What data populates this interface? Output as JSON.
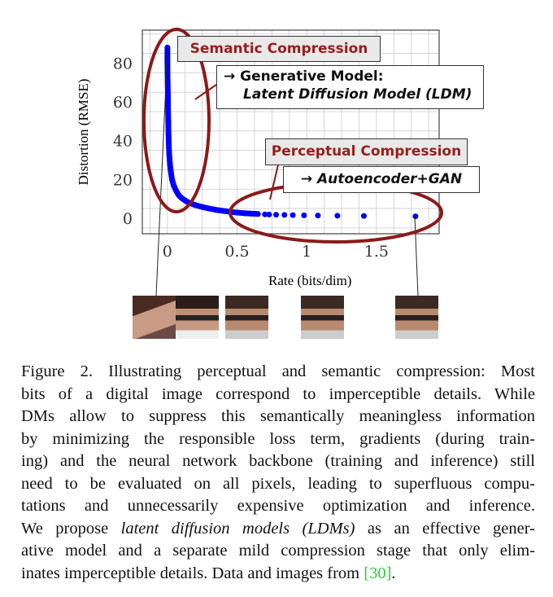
{
  "chart_data": {
    "type": "scatter",
    "xlabel": "Rate (bits/dim)",
    "ylabel": "Distortion (RMSE)",
    "xlim": [
      -0.18,
      1.95
    ],
    "ylim": [
      -8,
      97
    ],
    "xticks": [
      "0",
      "0.5",
      "1",
      "1.5"
    ],
    "xtick_values": [
      0,
      0.5,
      1,
      1.5
    ],
    "yticks": [
      "0",
      "20",
      "40",
      "60",
      "80"
    ],
    "ytick_values": [
      0,
      20,
      40,
      60,
      80
    ],
    "grid": true,
    "point_color": "#0000ff",
    "points": [
      [
        0,
        88
      ],
      [
        0,
        80
      ],
      [
        0.002,
        70
      ],
      [
        0.004,
        60
      ],
      [
        0.006,
        50
      ],
      [
        0.009,
        40
      ],
      [
        0.013,
        33
      ],
      [
        0.018,
        28
      ],
      [
        0.025,
        24
      ],
      [
        0.033,
        20
      ],
      [
        0.045,
        17
      ],
      [
        0.06,
        14.5
      ],
      [
        0.08,
        12
      ],
      [
        0.1,
        10.5
      ],
      [
        0.13,
        9
      ],
      [
        0.16,
        7.8
      ],
      [
        0.2,
        6.8
      ],
      [
        0.25,
        5.8
      ],
      [
        0.3,
        5
      ],
      [
        0.35,
        4.3
      ],
      [
        0.4,
        3.8
      ],
      [
        0.45,
        3.3
      ],
      [
        0.5,
        2.9
      ],
      [
        0.55,
        2.6
      ],
      [
        0.6,
        2.4
      ],
      [
        0.65,
        2.2
      ],
      [
        0.7,
        2
      ],
      [
        0.73,
        1.9
      ],
      [
        0.78,
        1.8
      ],
      [
        0.84,
        1.7
      ],
      [
        0.9,
        1.6
      ],
      [
        0.98,
        1.5
      ],
      [
        1.08,
        1.4
      ],
      [
        1.22,
        1.3
      ],
      [
        1.41,
        1.2
      ],
      [
        1.78,
        1
      ]
    ]
  },
  "annotations": {
    "semantic": "Semantic Compression",
    "generative_line1": "→ Generative Model:",
    "generative_line2": "Latent Diffusion Model (LDM)",
    "perceptual": "Perceptual Compression",
    "autoencoder": "→ Autoencoder+GAN",
    "ellipse_color": "#8b0000"
  },
  "caption": {
    "lines": [
      "Figure 2.  Illustrating perceptual and semantic compression: Most",
      "bits of a digital image correspond to imperceptible details. While",
      "DMs allow to suppress this semantically meaningless information",
      "by minimizing the responsible loss term, gradients (during train-",
      "ing) and the neural network backbone (training and inference) still",
      "need to be evaluated on all pixels, leading to superfluous compu-",
      "tations and unnecessarily expensive optimization and inference."
    ],
    "line8_pre": "We propose ",
    "line8_em": "latent diffusion models (LDMs)",
    "line8_post": " as an effective gener-",
    "line9": "ative model and a separate mild compression stage that only elim-",
    "line10_pre": "inates imperceptible details. Data and images from ",
    "citation": "[30]",
    "line10_post": "."
  }
}
